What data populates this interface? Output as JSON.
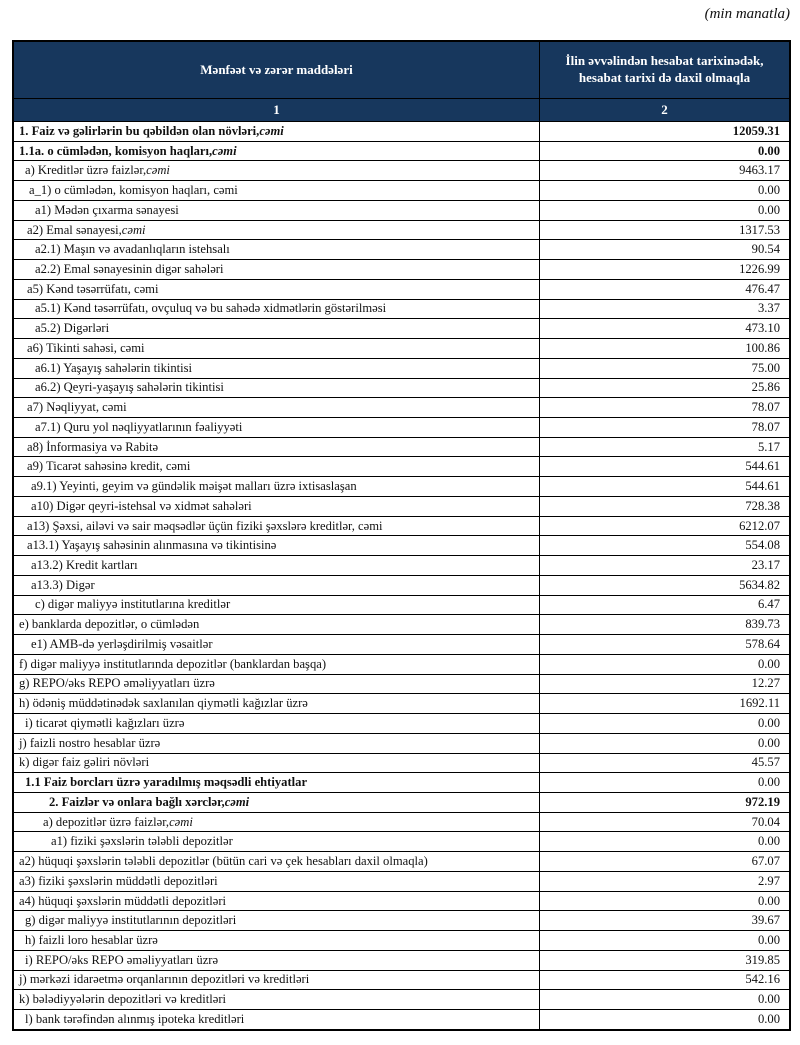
{
  "note": "(min manatla)",
  "colors": {
    "header_bg": "#17375D",
    "header_text": "#FFFFFF",
    "border": "#000000"
  },
  "table": {
    "columns": [
      {
        "header": "Mənfəət və zərər maddələri",
        "index_label": "1"
      },
      {
        "header": "İlin əvvəlindən hesabat tarixinədək, hesabat tarixi də daxil olmaqla",
        "index_label": "2"
      }
    ],
    "rows": [
      {
        "label": "1. Faiz və gəlirlərin bu qəbildən olan növləri, ",
        "italic_suffix": "cəmi",
        "value": "12059.31",
        "label_bold": true,
        "value_bold": true,
        "indent": 0
      },
      {
        "label": "1.1a. o cümlədən, komisyon haqları, ",
        "italic_suffix": "cəmi",
        "value": "0.00",
        "label_bold": true,
        "value_bold": true,
        "indent": 0
      },
      {
        "label": "a) Kreditlər üzrə faizlər, ",
        "italic_suffix": "cəmi",
        "value": "9463.17",
        "label_bold": false,
        "value_bold": false,
        "indent": 6
      },
      {
        "label": "a_1) o cümlədən, komisyon haqları, cəmi",
        "italic_suffix": "",
        "value": "0.00",
        "label_bold": false,
        "value_bold": false,
        "indent": 10
      },
      {
        "label": "a1) Mədən çıxarma sənayesi",
        "italic_suffix": "",
        "value": "0.00",
        "label_bold": false,
        "value_bold": false,
        "indent": 16
      },
      {
        "label": "a2) Emal sənayesi, ",
        "italic_suffix": "cəmi",
        "value": "1317.53",
        "label_bold": false,
        "value_bold": false,
        "indent": 8
      },
      {
        "label": "a2.1) Maşın və avadanlıqların istehsalı",
        "italic_suffix": "",
        "value": "90.54",
        "label_bold": false,
        "value_bold": false,
        "indent": 16
      },
      {
        "label": "a2.2) Emal sənayesinin digər sahələri",
        "italic_suffix": "",
        "value": "1226.99",
        "label_bold": false,
        "value_bold": false,
        "indent": 16
      },
      {
        "label": "a5) Kənd təsərrüfatı, cəmi",
        "italic_suffix": "",
        "value": "476.47",
        "label_bold": false,
        "value_bold": false,
        "indent": 8
      },
      {
        "label": "a5.1) Kənd təsərrüfatı, ovçuluq və bu sahədə xidmətlərin göstərilməsi",
        "italic_suffix": "",
        "value": "3.37",
        "label_bold": false,
        "value_bold": false,
        "indent": 16
      },
      {
        "label": "a5.2) Digərləri",
        "italic_suffix": "",
        "value": "473.10",
        "label_bold": false,
        "value_bold": false,
        "indent": 16
      },
      {
        "label": "a6) Tikinti sahəsi, cəmi",
        "italic_suffix": "",
        "value": "100.86",
        "label_bold": false,
        "value_bold": false,
        "indent": 8
      },
      {
        "label": "a6.1) Yaşayış sahələrin tikintisi",
        "italic_suffix": "",
        "value": "75.00",
        "label_bold": false,
        "value_bold": false,
        "indent": 16
      },
      {
        "label": "a6.2) Qeyri-yaşayış sahələrin tikintisi",
        "italic_suffix": "",
        "value": "25.86",
        "label_bold": false,
        "value_bold": false,
        "indent": 16
      },
      {
        "label": "a7) Nəqliyyat, cəmi",
        "italic_suffix": "",
        "value": "78.07",
        "label_bold": false,
        "value_bold": false,
        "indent": 8
      },
      {
        "label": "a7.1) Quru yol nəqliyyatlarının fəaliyyəti",
        "italic_suffix": "",
        "value": "78.07",
        "label_bold": false,
        "value_bold": false,
        "indent": 16
      },
      {
        "label": "a8)  İnformasiya və Rabitə",
        "italic_suffix": "",
        "value": "5.17",
        "label_bold": false,
        "value_bold": false,
        "indent": 8
      },
      {
        "label": "a9) Ticarət sahəsinə kredit, cəmi",
        "italic_suffix": "",
        "value": "544.61",
        "label_bold": false,
        "value_bold": false,
        "indent": 8
      },
      {
        "label": "a9.1) Yeyinti, geyim və gündəlik məişət malları üzrə ixtisaslaşan",
        "italic_suffix": "",
        "value": "544.61",
        "label_bold": false,
        "value_bold": false,
        "indent": 12
      },
      {
        "label": "a10) Digər qeyri-istehsal və xidmət sahələri",
        "italic_suffix": "",
        "value": "728.38",
        "label_bold": false,
        "value_bold": false,
        "indent": 12
      },
      {
        "label": "a13) Şəxsi, ailəvi və sair məqsədlər üçün fiziki şəxslərə kreditlər, cəmi",
        "italic_suffix": "",
        "value": "6212.07",
        "label_bold": false,
        "value_bold": false,
        "indent": 8
      },
      {
        "label": "a13.1) Yaşayış sahəsinin alınmasına və tikintisinə",
        "italic_suffix": "",
        "value": "554.08",
        "label_bold": false,
        "value_bold": false,
        "indent": 8
      },
      {
        "label": "a13.2) Kredit kartları",
        "italic_suffix": "",
        "value": "23.17",
        "label_bold": false,
        "value_bold": false,
        "indent": 12
      },
      {
        "label": "a13.3) Digər",
        "italic_suffix": "",
        "value": "5634.82",
        "label_bold": false,
        "value_bold": false,
        "indent": 12
      },
      {
        "label": "c) digər maliyyə institutlarına kreditlər",
        "italic_suffix": "",
        "value": "6.47",
        "label_bold": false,
        "value_bold": false,
        "indent": 16
      },
      {
        "label": "e) banklarda depozitlər, o cümlədən",
        "italic_suffix": "",
        "value": "839.73",
        "label_bold": false,
        "value_bold": false,
        "indent": 0
      },
      {
        "label": "e1)  AMB-də yerləşdirilmiş vəsaitlər",
        "italic_suffix": "",
        "value": "578.64",
        "label_bold": false,
        "value_bold": false,
        "indent": 12
      },
      {
        "label": "f) digər maliyyə institutlarında depozitlər (banklardan başqa)",
        "italic_suffix": "",
        "value": "0.00",
        "label_bold": false,
        "value_bold": false,
        "indent": 0
      },
      {
        "label": "g) REPO/əks REPO əməliyyatları üzrə",
        "italic_suffix": "",
        "value": "12.27",
        "label_bold": false,
        "value_bold": false,
        "indent": 0
      },
      {
        "label": "h) ödəniş müddətinədək saxlanılan qiymətli kağızlar üzrə",
        "italic_suffix": "",
        "value": "1692.11",
        "label_bold": false,
        "value_bold": false,
        "indent": 0
      },
      {
        "label": "i) ticarət qiymətli kağızları üzrə",
        "italic_suffix": "",
        "value": "0.00",
        "label_bold": false,
        "value_bold": false,
        "indent": 6
      },
      {
        "label": "j) faizli nostro hesablar üzrə",
        "italic_suffix": "",
        "value": "0.00",
        "label_bold": false,
        "value_bold": false,
        "indent": 0
      },
      {
        "label": "k) digər faiz gəliri növləri",
        "italic_suffix": "",
        "value": "45.57",
        "label_bold": false,
        "value_bold": false,
        "indent": 0
      },
      {
        "label": "1.1 Faiz borcları üzrə yaradılmış məqsədli ehtiyatlar",
        "italic_suffix": "",
        "value": "0.00",
        "label_bold": true,
        "value_bold": false,
        "indent": 6
      },
      {
        "label": "2. Faizlər və onlara bağlı xərclər, ",
        "italic_suffix": "cəmi",
        "value": "972.19",
        "label_bold": true,
        "value_bold": true,
        "indent": 30
      },
      {
        "label": "a) depozitlər üzrə faizlər, ",
        "italic_suffix": "cəmi",
        "value": "70.04",
        "label_bold": false,
        "value_bold": false,
        "indent": 24
      },
      {
        "label": "a1) fiziki şəxslərin tələbli depozitlər",
        "italic_suffix": "",
        "value": "0.00",
        "label_bold": false,
        "value_bold": false,
        "indent": 32
      },
      {
        "label": "a2) hüquqi şəxslərin tələbli depozitlər (bütün cari və çek hesabları daxil olmaqla)",
        "italic_suffix": "",
        "value": "67.07",
        "label_bold": false,
        "value_bold": false,
        "indent": 0
      },
      {
        "label": "a3) fiziki şəxslərin müddətli depozitləri",
        "italic_suffix": "",
        "value": "2.97",
        "label_bold": false,
        "value_bold": false,
        "indent": 0
      },
      {
        "label": "a4) hüquqi şəxslərin müddətli depozitləri",
        "italic_suffix": "",
        "value": "0.00",
        "label_bold": false,
        "value_bold": false,
        "indent": 0
      },
      {
        "label": "g) digər maliyyə institutlarının depozitləri",
        "italic_suffix": "",
        "value": "39.67",
        "label_bold": false,
        "value_bold": false,
        "indent": 6
      },
      {
        "label": "h) faizli loro hesablar üzrə",
        "italic_suffix": "",
        "value": "0.00",
        "label_bold": false,
        "value_bold": false,
        "indent": 6
      },
      {
        "label": "i) REPO/əks REPO əməliyyatları üzrə",
        "italic_suffix": "",
        "value": "319.85",
        "label_bold": false,
        "value_bold": false,
        "indent": 6
      },
      {
        "label": "j) mərkəzi idarəetmə orqanlarının depozitləri və kreditləri",
        "italic_suffix": "",
        "value": "542.16",
        "label_bold": false,
        "value_bold": false,
        "indent": 0
      },
      {
        "label": "k) bələdiyyələrin depozitləri və kreditləri",
        "italic_suffix": "",
        "value": "0.00",
        "label_bold": false,
        "value_bold": false,
        "indent": 0
      },
      {
        "label": "l) bank tərəfindən alınmış ipoteka kreditləri",
        "italic_suffix": "",
        "value": "0.00",
        "label_bold": false,
        "value_bold": false,
        "indent": 6
      }
    ]
  }
}
